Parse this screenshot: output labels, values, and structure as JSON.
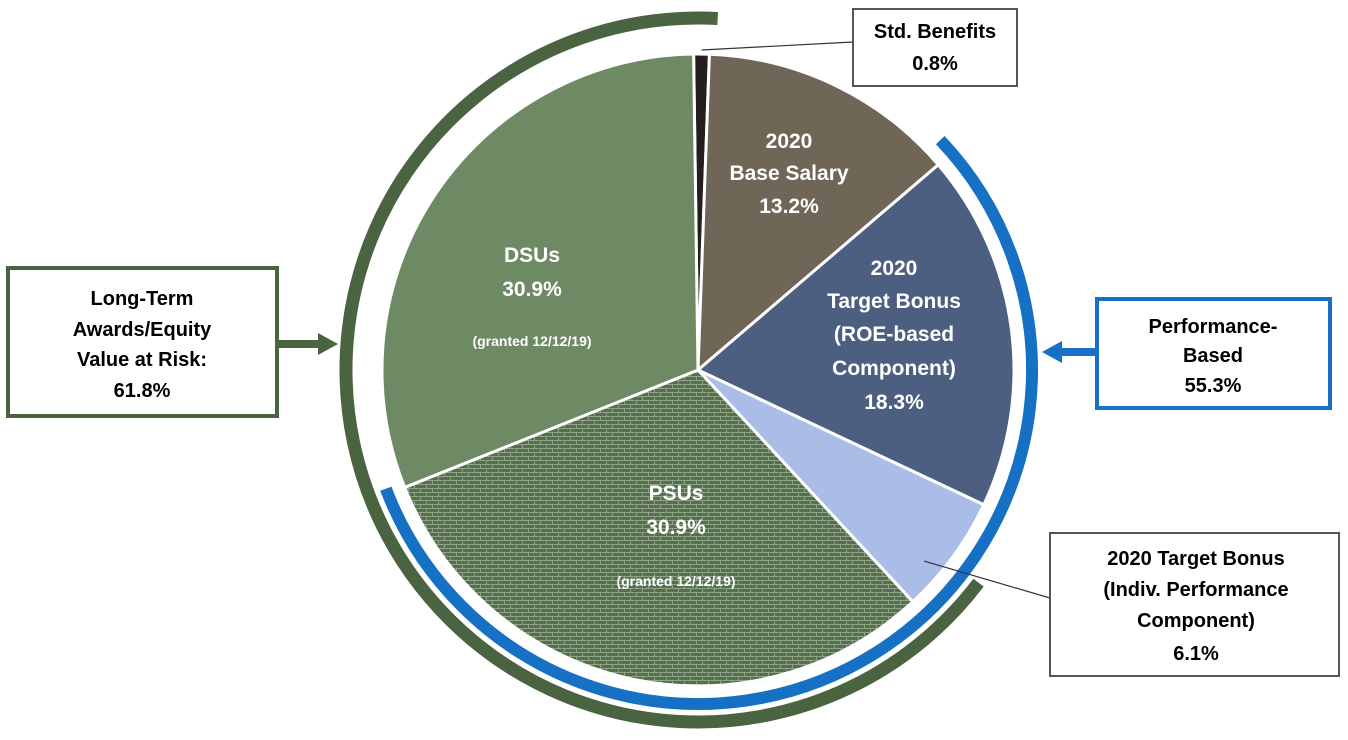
{
  "chart_data": {
    "type": "pie",
    "slices": [
      {
        "key": "std_benefits",
        "label": "Std. Benefits",
        "value": 0.8,
        "value_label": "0.8%",
        "color": "#231f1c"
      },
      {
        "key": "base_salary",
        "label": "2020 Base Salary",
        "value": 13.2,
        "value_label": "13.2%",
        "color": "#6f6657"
      },
      {
        "key": "roe_bonus",
        "label": "2020 Target Bonus (ROE-based Component)",
        "value": 18.3,
        "value_label": "18.3%",
        "color": "#4d5f80"
      },
      {
        "key": "indiv_bonus",
        "label": "2020 Target Bonus (Indiv. Performance Component)",
        "value": 6.1,
        "value_label": "6.1%",
        "color": "#a9bde6"
      },
      {
        "key": "psus",
        "label": "PSUs",
        "value": 30.9,
        "value_label": "30.9%",
        "note": "(granted 12/12/19)",
        "color": "#55704f",
        "pattern": "brick"
      },
      {
        "key": "dsus",
        "label": "DSUs",
        "value": 30.9,
        "value_label": "30.9%",
        "note": "(granted 12/12/19)",
        "color": "#6e8a64"
      }
    ],
    "groups": [
      {
        "key": "long_term",
        "label": "Long-Term Awards/Equity Value at Risk:",
        "value": 61.8,
        "value_label": "61.8%",
        "color": "#4a6341",
        "members": [
          "psus",
          "dsus"
        ]
      },
      {
        "key": "performance",
        "label": "Performance-Based",
        "value": 55.3,
        "value_label": "55.3%",
        "color": "#1670c4",
        "members": [
          "roe_bonus",
          "indiv_bonus",
          "psus"
        ]
      }
    ]
  },
  "labels": {
    "base_salary": [
      "2020",
      "Base Salary",
      "13.2%"
    ],
    "roe_bonus": [
      "2020",
      "Target Bonus",
      "(ROE-based",
      "Component)",
      "18.3%"
    ],
    "dsus": [
      "DSUs",
      "30.9%"
    ],
    "dsus_note": "(granted 12/12/19)",
    "psus": [
      "PSUs",
      "30.9%"
    ],
    "psus_note": "(granted 12/12/19)"
  },
  "callouts": {
    "std_benefits": [
      "Std. Benefits",
      "0.8%"
    ],
    "long_term": [
      "Long-Term",
      "Awards/Equity",
      "Value at Risk:",
      "61.8%"
    ],
    "performance": [
      "Performance-",
      "Based",
      "55.3%"
    ],
    "indiv_bonus": [
      "2020 Target Bonus",
      "(Indiv. Performance",
      "Component)",
      "6.1%"
    ]
  }
}
